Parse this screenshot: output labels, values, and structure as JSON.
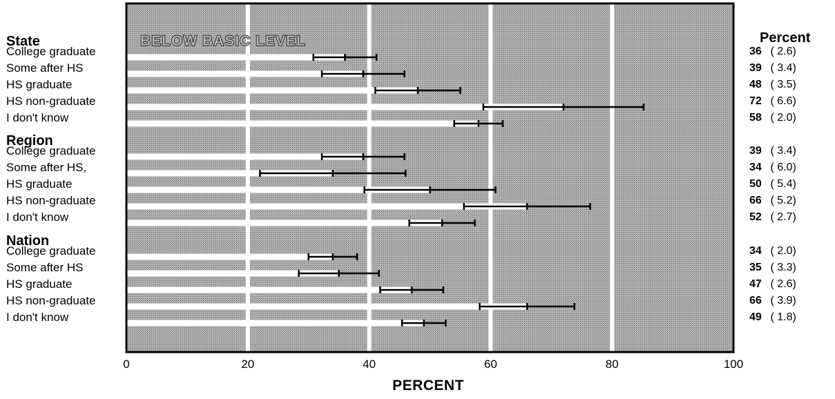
{
  "chart_data": {
    "type": "bar",
    "panel_title": "BELOW BASIC LEVEL",
    "right_header": "Percent",
    "xlabel": "PERCENT",
    "xlim": [
      0,
      100
    ],
    "xticks": [
      0,
      20,
      40,
      60,
      80,
      100
    ],
    "groups": [
      {
        "name": "State",
        "rows": [
          {
            "label": "College graduate",
            "value": 36,
            "se": 2.6,
            "display": "36",
            "se_display": "( 2.6)"
          },
          {
            "label": "Some after HS",
            "value": 39,
            "se": 3.4,
            "display": "39",
            "se_display": "( 3.4)"
          },
          {
            "label": "HS graduate",
            "value": 48,
            "se": 3.5,
            "display": "48",
            "se_display": "( 3.5)"
          },
          {
            "label": "HS non-graduate",
            "value": 72,
            "se": 6.6,
            "display": "72",
            "se_display": "( 6.6)"
          },
          {
            "label": "I don't know",
            "value": 58,
            "se": 2.0,
            "display": "58",
            "se_display": "( 2.0)"
          }
        ]
      },
      {
        "name": "Region",
        "rows": [
          {
            "label": "College graduate",
            "value": 39,
            "se": 3.4,
            "display": "39",
            "se_display": "( 3.4)"
          },
          {
            "label": "Some after HS,",
            "value": 34,
            "se": 6.0,
            "display": "34",
            "se_display": "( 6.0)"
          },
          {
            "label": "HS graduate",
            "value": 50,
            "se": 5.4,
            "display": "50",
            "se_display": "( 5.4)"
          },
          {
            "label": "HS non-graduate",
            "value": 66,
            "se": 5.2,
            "display": "66",
            "se_display": "( 5.2)"
          },
          {
            "label": "I don't know",
            "value": 52,
            "se": 2.7,
            "display": "52",
            "se_display": "( 2.7)"
          }
        ]
      },
      {
        "name": "Nation",
        "rows": [
          {
            "label": "College graduate",
            "value": 34,
            "se": 2.0,
            "display": "34",
            "se_display": "( 2.0)"
          },
          {
            "label": "Some after HS",
            "value": 35,
            "se": 3.3,
            "display": "35",
            "se_display": "( 3.3)"
          },
          {
            "label": "HS graduate",
            "value": 47,
            "se": 2.6,
            "display": "47",
            "se_display": "( 2.6)"
          },
          {
            "label": "HS non-graduate",
            "value": 66,
            "se": 3.9,
            "display": "66",
            "se_display": "( 3.9)"
          },
          {
            "label": "I don't know",
            "value": 49,
            "se": 1.8,
            "display": "49",
            "se_display": "( 1.8)"
          }
        ]
      }
    ],
    "colors": {
      "bar": "#ffffff",
      "plot_bg": "#a8a8a8",
      "error_bar": "#000000",
      "gridline": "#ffffff"
    }
  }
}
